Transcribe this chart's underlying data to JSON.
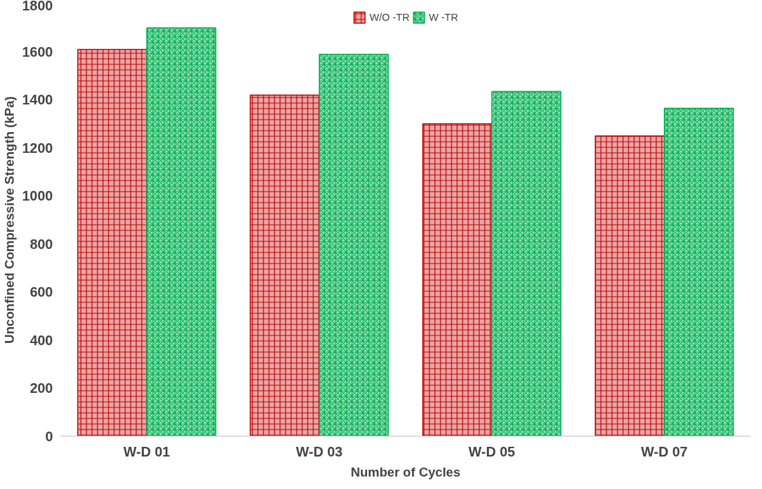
{
  "chart_data": {
    "type": "bar",
    "xlabel": "Number of Cycles",
    "ylabel": "Unconfined Compressive Strength (kPa)",
    "categories": [
      "W-D 01",
      "W-D 03",
      "W-D 05",
      "W-D 07"
    ],
    "series": [
      {
        "name": "W/O -TR",
        "color": "#c00000",
        "values": [
          1610,
          1420,
          1300,
          1250
        ]
      },
      {
        "name": "W -TR",
        "color": "#00b050",
        "values": [
          1700,
          1590,
          1435,
          1365
        ]
      }
    ],
    "ylim": [
      0,
      1800
    ],
    "yticks": [
      0,
      200,
      400,
      600,
      800,
      1000,
      1200,
      1400,
      1600,
      1800
    ],
    "grid": false,
    "legend": "top"
  }
}
